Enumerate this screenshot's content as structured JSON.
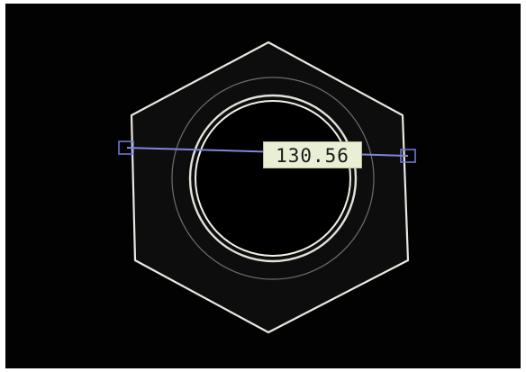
{
  "measurement": {
    "value": "130.56"
  },
  "colors": {
    "background": "#020202",
    "outline": "#e8e8e0",
    "measure_line": "#7f87d6",
    "label_background": "#e9efd5",
    "label_text": "#1a1a1a"
  },
  "icons": {
    "left_handle": "square-handle-icon",
    "right_handle": "square-handle-icon"
  }
}
